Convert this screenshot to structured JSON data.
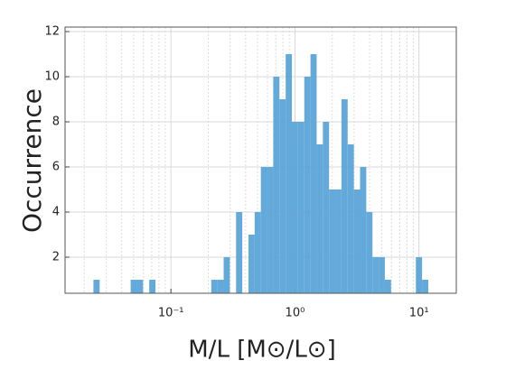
{
  "chart_data": {
    "type": "histogram",
    "xlabel": "M/L [M⊙/L⊙]",
    "ylabel": "Occurrence",
    "xscale": "log",
    "grid": true,
    "color": "#5ba5d8",
    "xlim": [
      0.014,
      20
    ],
    "ylim": [
      0.4,
      12.2
    ],
    "xticks": [
      {
        "value": 0.1,
        "label": "10⁻¹"
      },
      {
        "value": 1,
        "label": "10⁰"
      },
      {
        "value": 10,
        "label": "10¹"
      }
    ],
    "xminorticks": [
      0.02,
      0.03,
      0.04,
      0.05,
      0.06,
      0.07,
      0.08,
      0.09,
      0.2,
      0.3,
      0.4,
      0.5,
      0.6,
      0.7,
      0.8,
      0.9,
      2,
      3,
      4,
      5,
      6,
      7,
      8,
      9
    ],
    "yticks": [
      2,
      4,
      6,
      8,
      10,
      12
    ],
    "bins": [
      0.02371,
      0.02661,
      0.02985,
      0.0335,
      0.03758,
      0.04217,
      0.04732,
      0.05309,
      0.05957,
      0.06683,
      0.07499,
      0.08414,
      0.09441,
      0.1059,
      0.1189,
      0.1334,
      0.1496,
      0.1679,
      0.1884,
      0.2113,
      0.2371,
      0.2661,
      0.2985,
      0.335,
      0.3758,
      0.4217,
      0.4732,
      0.5309,
      0.5957,
      0.6683,
      0.7499,
      0.8414,
      0.9441,
      1.059,
      1.189,
      1.334,
      1.496,
      1.679,
      1.884,
      2.113,
      2.371,
      2.661,
      2.985,
      3.35,
      3.758,
      4.217,
      4.732,
      5.309,
      5.957,
      6.683,
      7.499,
      8.414,
      9.441,
      10.59,
      11.89
    ],
    "values": [
      1,
      0,
      0,
      0,
      0,
      0,
      1,
      1,
      0,
      1,
      0,
      0,
      0,
      0,
      0,
      0,
      0,
      0,
      0,
      1,
      1,
      2,
      0,
      4,
      0,
      3,
      4,
      6,
      6,
      10,
      9,
      11,
      8,
      8,
      10,
      11,
      7,
      8,
      5,
      5,
      9,
      7,
      5,
      6,
      4,
      2,
      2,
      1,
      0,
      0,
      0,
      0,
      2,
      1
    ]
  }
}
